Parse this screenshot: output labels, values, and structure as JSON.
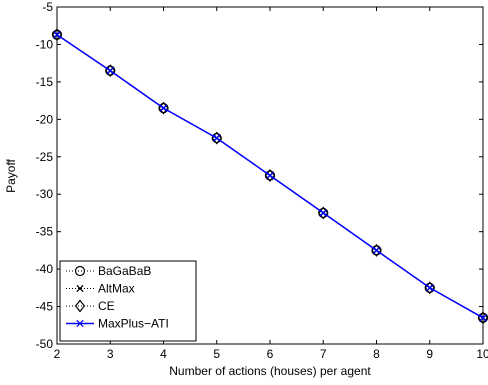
{
  "chart_data": {
    "type": "line",
    "title": "",
    "xlabel": "Number of actions (houses) per agent",
    "ylabel": "Payoff",
    "xlim": [
      2,
      10
    ],
    "ylim": [
      -50,
      -5
    ],
    "x_ticks": [
      "2",
      "3",
      "4",
      "5",
      "6",
      "7",
      "8",
      "9",
      "10"
    ],
    "y_ticks": [
      "-5",
      "-10",
      "-15",
      "-20",
      "-25",
      "-30",
      "-35",
      "-40",
      "-45",
      "-50"
    ],
    "x_tick_values": [
      2,
      3,
      4,
      5,
      6,
      7,
      8,
      9,
      10
    ],
    "y_tick_values": [
      -5,
      -10,
      -15,
      -20,
      -25,
      -30,
      -35,
      -40,
      -45,
      -50
    ],
    "grid": false,
    "legend_position": "bottom-left",
    "x": [
      2,
      3,
      4,
      5,
      6,
      7,
      8,
      9,
      10
    ],
    "series": [
      {
        "name": "BaGaBaB",
        "marker": "circle",
        "line": "dotted",
        "color": "#000000",
        "values": [
          -8.7,
          -13.5,
          -18.5,
          -22.5,
          -27.5,
          -32.5,
          -37.5,
          -42.5,
          -46.5
        ]
      },
      {
        "name": "AltMax",
        "marker": "x",
        "line": "dotted",
        "color": "#000000",
        "values": [
          -8.7,
          -13.5,
          -18.5,
          -22.5,
          -27.5,
          -32.5,
          -37.5,
          -42.5,
          -46.5
        ]
      },
      {
        "name": "CE",
        "marker": "diamond",
        "line": "dotted",
        "color": "#000000",
        "values": [
          -8.7,
          -13.5,
          -18.5,
          -22.5,
          -27.5,
          -32.5,
          -37.5,
          -42.5,
          -46.5
        ]
      },
      {
        "name": "MaxPlus−ATI",
        "marker": "x",
        "line": "solid",
        "color": "#0000ff",
        "values": [
          -8.7,
          -13.5,
          -18.5,
          -22.5,
          -27.5,
          -32.5,
          -37.5,
          -42.5,
          -46.5
        ]
      }
    ]
  }
}
